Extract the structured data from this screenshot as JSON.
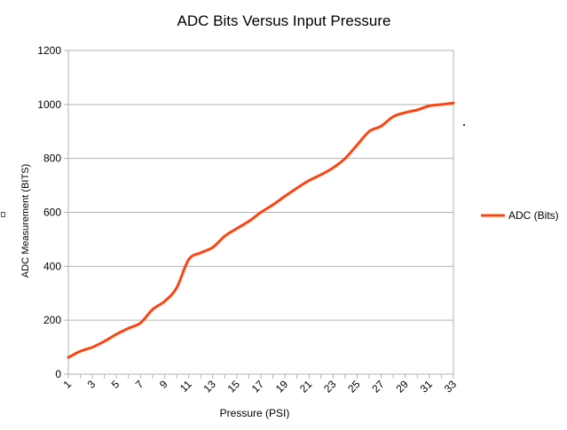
{
  "chart_data": {
    "type": "line",
    "title": "ADC Bits Versus Input Pressure",
    "xlabel": "Pressure (PSI)",
    "ylabel": "ADC Measurement (BITS)",
    "x": [
      1,
      2,
      3,
      4,
      5,
      6,
      7,
      8,
      9,
      10,
      11,
      12,
      13,
      14,
      15,
      16,
      17,
      18,
      19,
      20,
      21,
      22,
      23,
      24,
      25,
      26,
      27,
      28,
      29,
      30,
      31,
      32,
      33
    ],
    "x_tick_labels": [
      "1",
      "3",
      "5",
      "7",
      "9",
      "11",
      "13",
      "15",
      "17",
      "19",
      "21",
      "23",
      "25",
      "27",
      "29",
      "31",
      "33"
    ],
    "ylim": [
      0,
      1200
    ],
    "y_ticks": [
      0,
      200,
      400,
      600,
      800,
      1000,
      1200
    ],
    "grid": "horizontal",
    "legend_position": "right",
    "series": [
      {
        "name": "ADC (Bits)",
        "color": "#ff420e",
        "values": [
          62,
          85,
          100,
          122,
          148,
          170,
          190,
          240,
          270,
          320,
          425,
          450,
          470,
          512,
          540,
          567,
          600,
          628,
          660,
          690,
          718,
          740,
          765,
          800,
          850,
          900,
          920,
          955,
          970,
          980,
          995,
          1000,
          1005
        ]
      }
    ]
  }
}
